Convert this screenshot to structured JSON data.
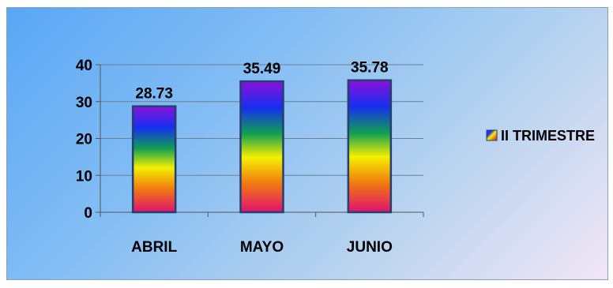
{
  "chart_data": {
    "type": "bar",
    "categories": [
      "ABRIL",
      "MAYO",
      "JUNIO"
    ],
    "series": [
      {
        "name": "II TRIMESTRE",
        "values": [
          28.73,
          35.49,
          35.78
        ]
      }
    ],
    "data_labels": [
      "28.73",
      "35.49",
      "35.78"
    ],
    "y_ticks": [
      "0",
      "10",
      "20",
      "30",
      "40"
    ],
    "ylim": [
      0,
      40
    ],
    "title": "",
    "xlabel": "",
    "ylabel": "",
    "grid": true,
    "legend_position": "right",
    "bar_fill": "rainbow-gradient",
    "bar_colors": [
      "#8b10d8",
      "#1530f0",
      "#10a050",
      "#f4f000",
      "#f07a10",
      "#e01070"
    ],
    "background_colors": [
      "#5aa7f5",
      "#b7d3ef",
      "#f3e6f6"
    ]
  }
}
